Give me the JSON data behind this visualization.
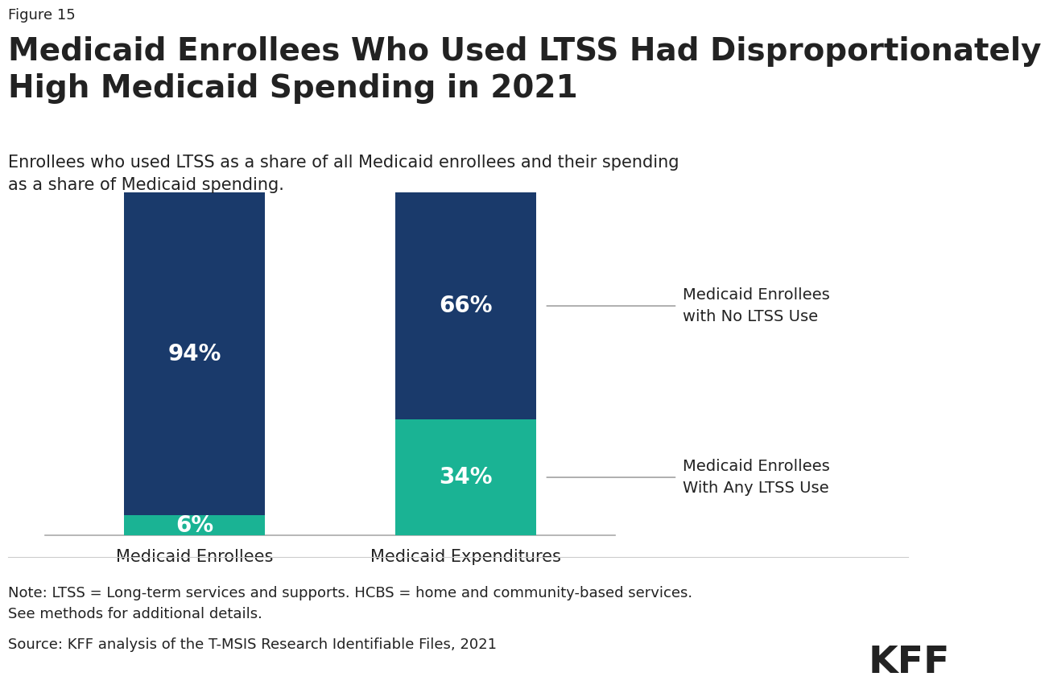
{
  "figure_label": "Figure 15",
  "title": "Medicaid Enrollees Who Used LTSS Had Disproportionately\nHigh Medicaid Spending in 2021",
  "subtitle": "Enrollees who used LTSS as a share of all Medicaid enrollees and their spending\nas a share of Medicaid spending.",
  "categories": [
    "Medicaid Enrollees",
    "Medicaid Expenditures"
  ],
  "ltss_values": [
    6,
    34
  ],
  "no_ltss_values": [
    94,
    66
  ],
  "ltss_color": "#1ab394",
  "no_ltss_color": "#1a3a6b",
  "ltss_label": "Medicaid Enrollees\nWith Any LTSS Use",
  "no_ltss_label": "Medicaid Enrollees\nwith No LTSS Use",
  "bar_width": 0.52,
  "note_text": "Note: LTSS = Long-term services and supports. HCBS = home and community-based services.\nSee methods for additional details.",
  "source_text": "Source: KFF analysis of the T-MSIS Research Identifiable Files, 2021",
  "kff_label": "KFF",
  "background_color": "#ffffff",
  "text_color": "#222222",
  "label_fontsize": 15,
  "title_fontsize": 28,
  "subtitle_fontsize": 15,
  "note_fontsize": 13,
  "bar_label_fontsize": 20,
  "annotation_fontsize": 14,
  "figure_label_fontsize": 13
}
